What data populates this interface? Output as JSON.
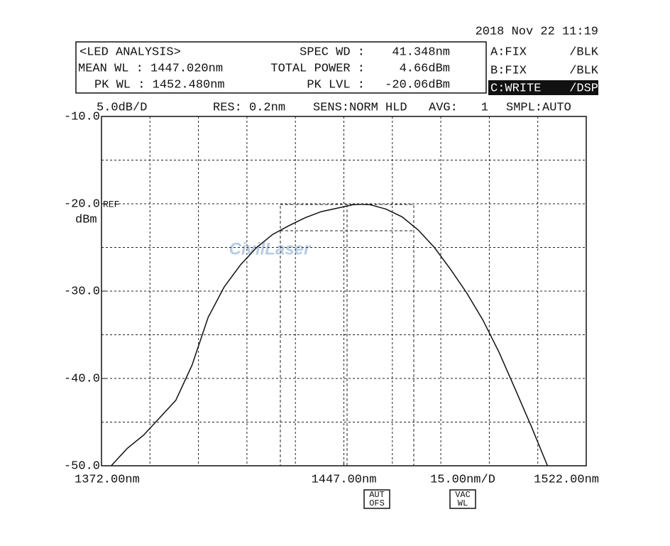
{
  "screen": {
    "datetime": "2018 Nov 22 11:19",
    "mode": "<LED ANALYSIS>",
    "mean_wl": "MEAN WL : 1447.020nm",
    "pk_wl": "PK WL : 1452.480nm",
    "spec_wd_label": "SPEC WD :",
    "spec_wd": "41.348nm",
    "total_power_label": "TOTAL POWER :",
    "total_power": "4.66dBm",
    "pk_lvl_label": "PK LVL :",
    "pk_lvl": "-20.06dBm",
    "traces": [
      [
        "A:FIX",
        "/BLK"
      ],
      [
        "B:FIX",
        "/BLK"
      ],
      [
        "C:WRITE",
        "/DSP"
      ]
    ],
    "scale": "5.0dB/D",
    "res": "RES: 0.2nm",
    "sens": "SENS:NORM HLD",
    "avg_label": "AVG:",
    "avg": "1",
    "smpl": "SMPL:AUTO",
    "ref": "REF",
    "unit": "dBm",
    "span_div": "15.00nm/D",
    "buttons": [
      [
        "AUT",
        "OFS"
      ],
      [
        "VAC",
        "WL"
      ]
    ],
    "watermark": "CivilLaser"
  },
  "chart_data": {
    "type": "line",
    "x": [
      1375,
      1380,
      1385,
      1390,
      1395,
      1400,
      1405,
      1410,
      1415,
      1420,
      1425,
      1430,
      1435,
      1440,
      1445,
      1450,
      1452.48,
      1455,
      1460,
      1465,
      1470,
      1475,
      1480,
      1485,
      1490,
      1495,
      1500,
      1505,
      1510
    ],
    "series": [
      {
        "color": "#111111",
        "values": [
          -50,
          -48,
          -46.5,
          -44.5,
          -42.5,
          -38.5,
          -33,
          -29.5,
          -27,
          -25,
          -23.5,
          -22.5,
          -21.6,
          -20.9,
          -20.5,
          -20.1,
          -20.06,
          -20.1,
          -20.6,
          -21.5,
          -23,
          -25,
          -27.5,
          -30.2,
          -33.3,
          -37,
          -41.2,
          -45.5,
          -50
        ]
      }
    ],
    "xlim": [
      1372,
      1522
    ],
    "ylim": [
      -50,
      -10
    ],
    "xticks": [
      {
        "value": 1372,
        "label": "1372.00nm"
      },
      {
        "value": 1447,
        "label": "1447.00nm"
      },
      {
        "value": 1522,
        "label": "1522.00nm"
      }
    ],
    "yticks": [
      {
        "value": -10,
        "label": "-10.0"
      },
      {
        "value": -20,
        "label": "-20.0"
      },
      {
        "value": -30,
        "label": "-30.0"
      },
      {
        "value": -40,
        "label": "-40.0"
      },
      {
        "value": -50,
        "label": "-50.0"
      }
    ],
    "grid": true
  }
}
